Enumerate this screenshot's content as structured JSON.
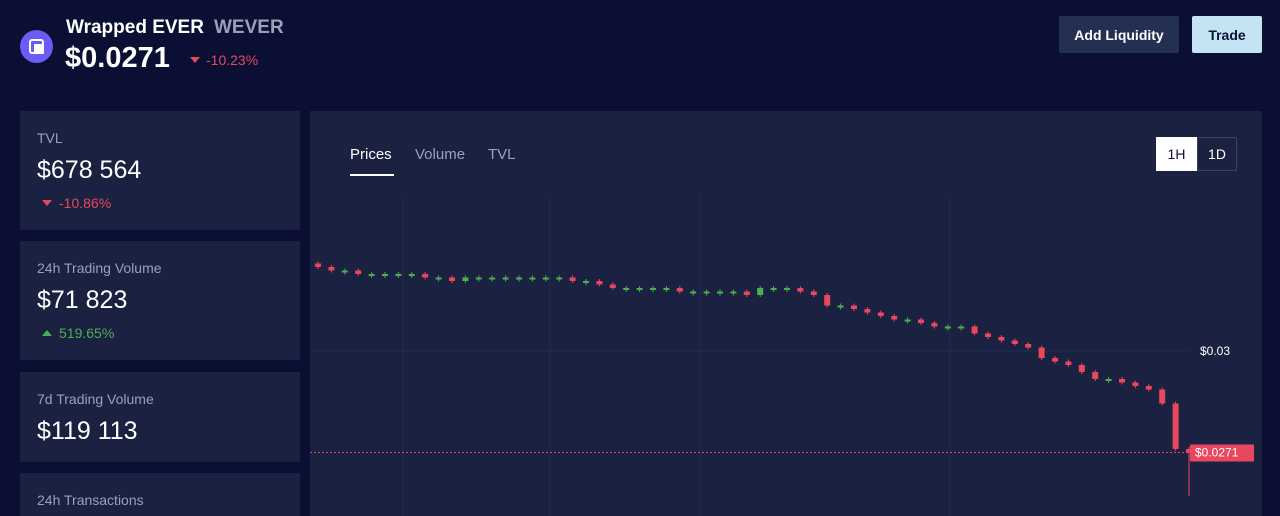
{
  "token": {
    "name": "Wrapped EVER",
    "symbol": "WEVER",
    "price": "$0.0271",
    "change": "-10.23%"
  },
  "actions": {
    "add_liquidity": "Add Liquidity",
    "trade": "Trade"
  },
  "stats": [
    {
      "label": "TVL",
      "value": "$678 564",
      "change": "-10.86%",
      "direction": "down"
    },
    {
      "label": "24h Trading Volume",
      "value": "$71 823",
      "change": "519.65%",
      "direction": "up"
    },
    {
      "label": "7d Trading Volume",
      "value": "$119 113"
    },
    {
      "label": "24h Transactions"
    }
  ],
  "chart": {
    "tabs": [
      "Prices",
      "Volume",
      "TVL"
    ],
    "active_tab": "Prices",
    "timeframes": [
      "1H",
      "1D"
    ],
    "active_timeframe": "1H",
    "axis_label": "$0.03",
    "current_price_label": "$0.0271"
  },
  "colors": {
    "background": "#0b0f33",
    "panel": "#1b2141",
    "up": "#4bb04f",
    "down": "#e8475e",
    "trade_button": "#c5e4f3"
  },
  "chart_data": {
    "type": "candlestick",
    "y_tick": 0.03,
    "current_price": 0.0271,
    "close_prices": [
      0.0324,
      0.0323,
      0.0323,
      0.0322,
      0.0322,
      0.0322,
      0.0322,
      0.0322,
      0.0321,
      0.0321,
      0.032,
      0.0321,
      0.0321,
      0.0321,
      0.0321,
      0.0321,
      0.0321,
      0.0321,
      0.0321,
      0.032,
      0.032,
      0.0319,
      0.0318,
      0.0318,
      0.0318,
      0.0318,
      0.0318,
      0.0317,
      0.0317,
      0.0317,
      0.0317,
      0.0317,
      0.0316,
      0.0318,
      0.0318,
      0.0318,
      0.0317,
      0.0316,
      0.0313,
      0.0313,
      0.0312,
      0.0311,
      0.031,
      0.0309,
      0.0309,
      0.0308,
      0.0307,
      0.0307,
      0.0307,
      0.0305,
      0.0304,
      0.0303,
      0.0302,
      0.0301,
      0.0298,
      0.0297,
      0.0296,
      0.0294,
      0.0292,
      0.0292,
      0.0291,
      0.029,
      0.0289,
      0.0285,
      0.0272,
      0.0271
    ]
  }
}
